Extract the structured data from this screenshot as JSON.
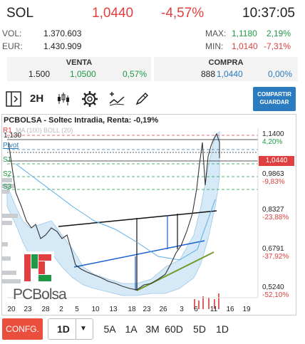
{
  "header": {
    "ticker": "SOL",
    "price": "1,0440",
    "change": "-4,57%",
    "time": "10:37:05"
  },
  "stats": {
    "vol_label": "VOL:",
    "vol": "1.370.603",
    "eur_label": "EUR:",
    "eur": "1.430.909",
    "max_label": "MAX:",
    "max_price": "1,1180",
    "max_pct": "2,19%",
    "min_label": "MIN:",
    "min_price": "1,0140",
    "min_pct": "-7,31%"
  },
  "venta": {
    "title": "VENTA",
    "qty": "1.500",
    "price": "1,0500",
    "pct": "0,57%"
  },
  "compra": {
    "title": "COMPRA",
    "qty": "888",
    "price": "1,0440",
    "pct": "0,00%"
  },
  "toolbar": {
    "interval": "2H",
    "share": "COMPARTIR GUARDAR"
  },
  "chart": {
    "title": "PCBOLSA - Soltec Intradia, Renta: -0,19%",
    "legend": "MA (100) BOLL (20)",
    "price_tag": "1,0440",
    "high_label": "1,130",
    "pivot_label": "Pivot",
    "r1": "R1",
    "s1": "S1",
    "s2": "S2",
    "s3": "S3",
    "axis": [
      {
        "value": "1,1400",
        "pct": "4,20%"
      },
      {
        "value": "0,9863",
        "pct": "-9,83%"
      },
      {
        "value": "0,8327",
        "pct": "-23,88%"
      },
      {
        "value": "0,6791",
        "pct": "-37,92%"
      },
      {
        "value": "0,5240",
        "pct": "-52,10%"
      }
    ],
    "xticks": [
      "20",
      "23",
      "28",
      "2",
      "5",
      "10",
      "13",
      "18",
      "23",
      "26",
      "3",
      "6",
      "11",
      "16",
      "19"
    ],
    "logo": "PCBolsa"
  },
  "bottom": {
    "config": "CONFG.",
    "period": "1D",
    "tf": [
      "5A",
      "1A",
      "3M",
      "60D",
      "5D",
      "1D"
    ]
  },
  "colors": {
    "red": "#e04040",
    "green": "#1e9a46",
    "blue": "#2a7bbf",
    "config": "#e94f3c"
  }
}
